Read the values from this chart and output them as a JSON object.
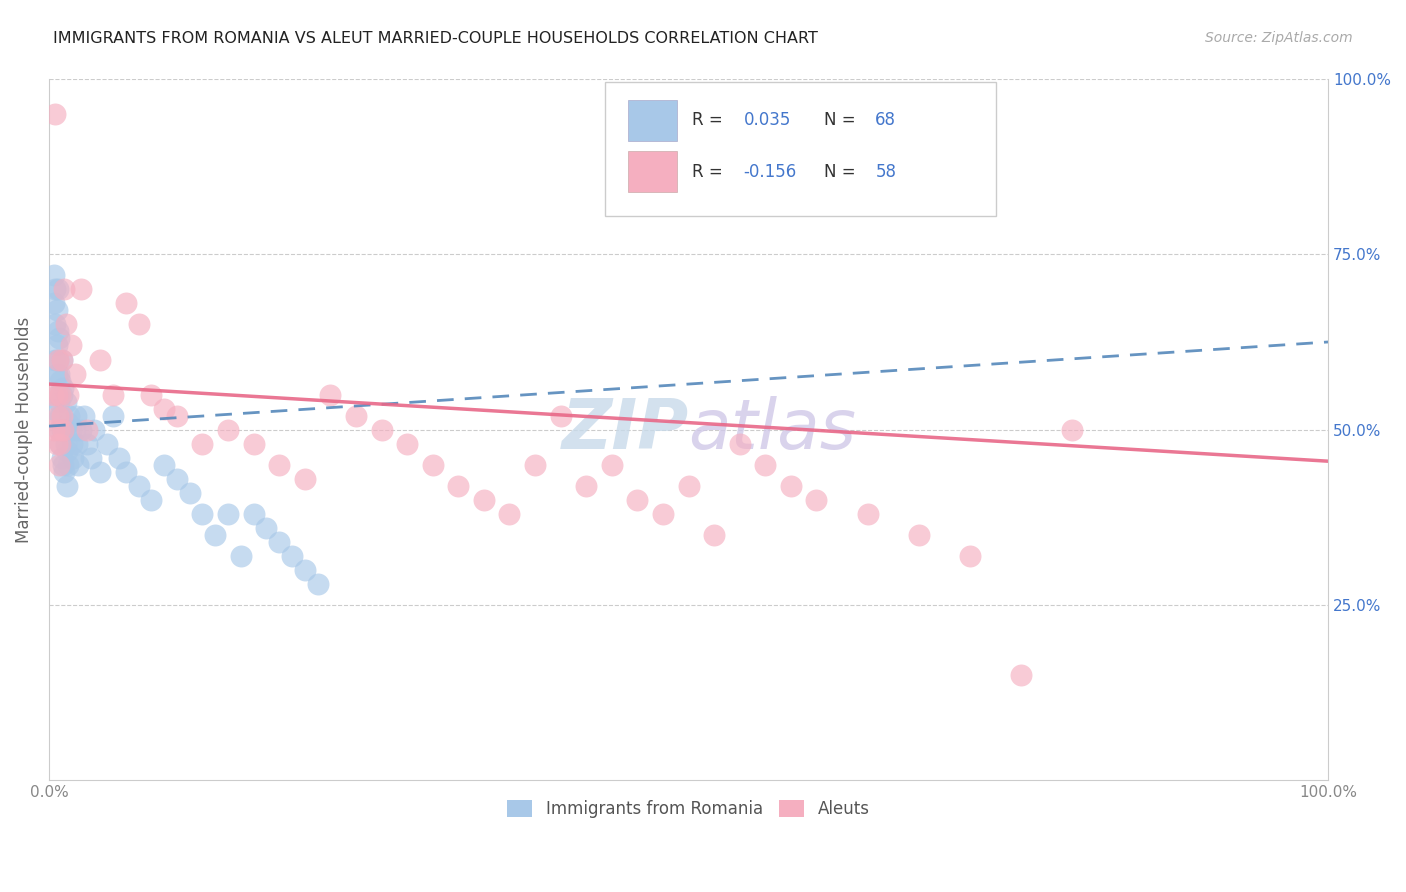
{
  "title": "IMMIGRANTS FROM ROMANIA VS ALEUT MARRIED-COUPLE HOUSEHOLDS CORRELATION CHART",
  "source_text": "Source: ZipAtlas.com",
  "ylabel": "Married-couple Households",
  "blue_color": "#a8c8e8",
  "pink_color": "#f5afc0",
  "blue_line_color": "#5588bb",
  "pink_line_color": "#e86888",
  "grid_color": "#cccccc",
  "title_color": "#222222",
  "source_color": "#aaaaaa",
  "tick_color_right": "#4477cc",
  "tick_color_left": "#888888",
  "watermark_color": "#e0e8f0",
  "legend_border_color": "#cccccc",
  "r_blue": 0.035,
  "n_blue": 68,
  "r_pink": -0.156,
  "n_pink": 58,
  "legend_label_blue": "Immigrants from Romania",
  "legend_label_pink": "Aleuts",
  "blue_x": [
    0.003,
    0.004,
    0.004,
    0.005,
    0.005,
    0.005,
    0.006,
    0.006,
    0.006,
    0.007,
    0.007,
    0.007,
    0.007,
    0.008,
    0.008,
    0.008,
    0.008,
    0.009,
    0.009,
    0.009,
    0.01,
    0.01,
    0.01,
    0.01,
    0.011,
    0.011,
    0.011,
    0.012,
    0.012,
    0.013,
    0.013,
    0.014,
    0.014,
    0.015,
    0.015,
    0.016,
    0.017,
    0.018,
    0.019,
    0.02,
    0.021,
    0.022,
    0.023,
    0.025,
    0.027,
    0.03,
    0.033,
    0.035,
    0.04,
    0.045,
    0.05,
    0.055,
    0.06,
    0.07,
    0.08,
    0.09,
    0.1,
    0.11,
    0.12,
    0.13,
    0.14,
    0.15,
    0.16,
    0.17,
    0.18,
    0.19,
    0.2,
    0.21
  ],
  "blue_y": [
    0.53,
    0.68,
    0.72,
    0.6,
    0.65,
    0.7,
    0.58,
    0.62,
    0.67,
    0.55,
    0.6,
    0.64,
    0.7,
    0.5,
    0.54,
    0.58,
    0.63,
    0.48,
    0.52,
    0.57,
    0.46,
    0.5,
    0.55,
    0.6,
    0.45,
    0.5,
    0.56,
    0.44,
    0.5,
    0.48,
    0.54,
    0.42,
    0.47,
    0.45,
    0.51,
    0.52,
    0.5,
    0.48,
    0.46,
    0.5,
    0.52,
    0.48,
    0.45,
    0.5,
    0.52,
    0.48,
    0.46,
    0.5,
    0.44,
    0.48,
    0.52,
    0.46,
    0.44,
    0.42,
    0.4,
    0.45,
    0.43,
    0.41,
    0.38,
    0.35,
    0.38,
    0.32,
    0.38,
    0.36,
    0.34,
    0.32,
    0.3,
    0.28
  ],
  "pink_x": [
    0.003,
    0.004,
    0.005,
    0.006,
    0.006,
    0.007,
    0.007,
    0.008,
    0.008,
    0.009,
    0.009,
    0.01,
    0.01,
    0.011,
    0.012,
    0.013,
    0.015,
    0.017,
    0.02,
    0.025,
    0.03,
    0.04,
    0.05,
    0.06,
    0.07,
    0.08,
    0.09,
    0.1,
    0.12,
    0.14,
    0.16,
    0.18,
    0.2,
    0.22,
    0.24,
    0.26,
    0.28,
    0.3,
    0.32,
    0.34,
    0.36,
    0.38,
    0.4,
    0.42,
    0.44,
    0.46,
    0.48,
    0.5,
    0.52,
    0.54,
    0.56,
    0.58,
    0.6,
    0.64,
    0.68,
    0.72,
    0.76,
    0.8
  ],
  "pink_y": [
    0.55,
    0.5,
    0.95,
    0.48,
    0.55,
    0.6,
    0.52,
    0.45,
    0.5,
    0.55,
    0.48,
    0.52,
    0.6,
    0.5,
    0.7,
    0.65,
    0.55,
    0.62,
    0.58,
    0.7,
    0.5,
    0.6,
    0.55,
    0.68,
    0.65,
    0.55,
    0.53,
    0.52,
    0.48,
    0.5,
    0.48,
    0.45,
    0.43,
    0.55,
    0.52,
    0.5,
    0.48,
    0.45,
    0.42,
    0.4,
    0.38,
    0.45,
    0.52,
    0.42,
    0.45,
    0.4,
    0.38,
    0.42,
    0.35,
    0.48,
    0.45,
    0.42,
    0.4,
    0.38,
    0.35,
    0.32,
    0.15,
    0.5
  ]
}
